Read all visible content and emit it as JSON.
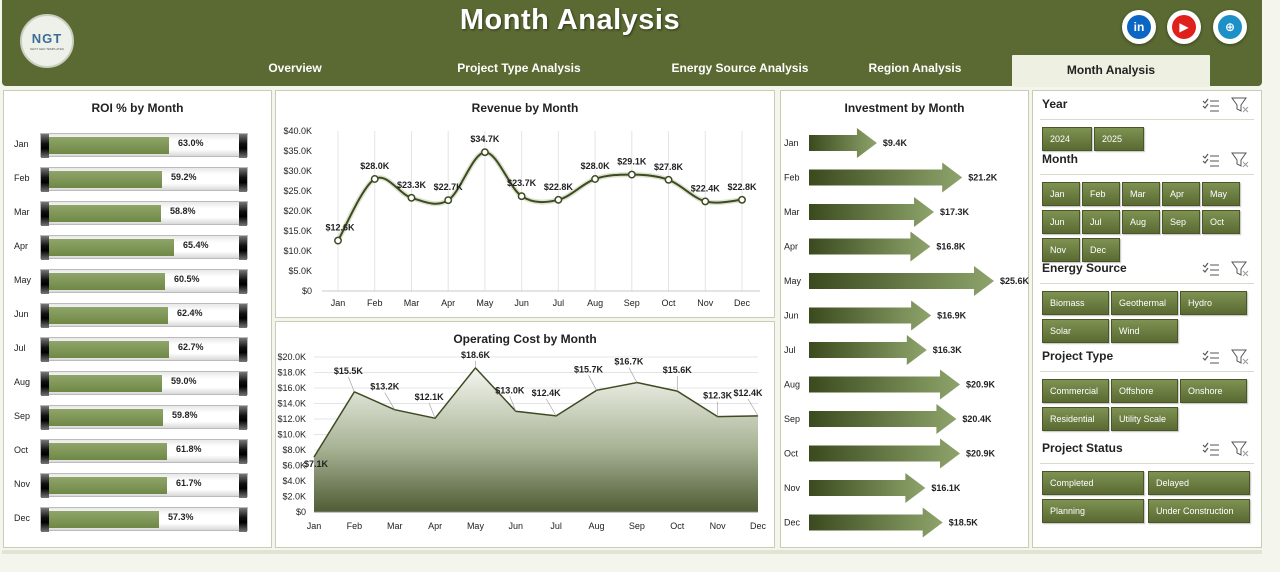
{
  "header": {
    "title": "Month Analysis",
    "logo_text": "NGT",
    "logo_subtext": "NEXT GEN TEMPLATES",
    "social": [
      {
        "name": "linkedin-icon",
        "glyph": "in",
        "color": "#0a66c2"
      },
      {
        "name": "youtube-icon",
        "glyph": "▶",
        "color": "#e0201c"
      },
      {
        "name": "globe-icon",
        "glyph": "⊕",
        "color": "#1e90c8"
      }
    ],
    "tabs": [
      {
        "label": "Overview",
        "active": false
      },
      {
        "label": "Project Type Analysis",
        "active": false
      },
      {
        "label": "Energy Source Analysis",
        "active": false
      },
      {
        "label": "Region Analysis",
        "active": false
      },
      {
        "label": "Month Analysis",
        "active": true
      }
    ]
  },
  "roi": {
    "title": "ROI % by Month",
    "rows": [
      {
        "month": "Jan",
        "value": 63.0,
        "label": "63.0%"
      },
      {
        "month": "Feb",
        "value": 59.2,
        "label": "59.2%"
      },
      {
        "month": "Mar",
        "value": 58.8,
        "label": "58.8%"
      },
      {
        "month": "Apr",
        "value": 65.4,
        "label": "65.4%"
      },
      {
        "month": "May",
        "value": 60.5,
        "label": "60.5%"
      },
      {
        "month": "Jun",
        "value": 62.4,
        "label": "62.4%"
      },
      {
        "month": "Jul",
        "value": 62.7,
        "label": "62.7%"
      },
      {
        "month": "Aug",
        "value": 59.0,
        "label": "59.0%"
      },
      {
        "month": "Sep",
        "value": 59.8,
        "label": "59.8%"
      },
      {
        "month": "Oct",
        "value": 61.8,
        "label": "61.8%"
      },
      {
        "month": "Nov",
        "value": 61.7,
        "label": "61.7%"
      },
      {
        "month": "Dec",
        "value": 57.3,
        "label": "57.3%"
      }
    ]
  },
  "chart_data": [
    {
      "type": "bar",
      "title": "ROI % by Month",
      "categories": [
        "Jan",
        "Feb",
        "Mar",
        "Apr",
        "May",
        "Jun",
        "Jul",
        "Aug",
        "Sep",
        "Oct",
        "Nov",
        "Dec"
      ],
      "values": [
        63.0,
        59.2,
        58.8,
        65.4,
        60.5,
        62.4,
        62.7,
        59.0,
        59.8,
        61.8,
        61.7,
        57.3
      ],
      "unit": "%"
    },
    {
      "type": "line",
      "title": "Revenue by Month",
      "categories": [
        "Jan",
        "Feb",
        "Mar",
        "Apr",
        "May",
        "Jun",
        "Jul",
        "Aug",
        "Sep",
        "Oct",
        "Nov",
        "Dec"
      ],
      "values": [
        12.6,
        28.0,
        23.3,
        22.7,
        34.7,
        23.7,
        22.8,
        28.0,
        29.1,
        27.8,
        22.4,
        22.8
      ],
      "labels": [
        "$12.6K",
        "$28.0K",
        "$23.3K",
        "$22.7K",
        "$34.7K",
        "$23.7K",
        "$22.8K",
        "$28.0K",
        "$29.1K",
        "$27.8K",
        "$22.4K",
        "$22.8K"
      ],
      "yticks": [
        "$0",
        "$5.0K",
        "$10.0K",
        "$15.0K",
        "$20.0K",
        "$25.0K",
        "$30.0K",
        "$35.0K",
        "$40.0K"
      ],
      "ylim": [
        0,
        40
      ]
    },
    {
      "type": "area",
      "title": "Operating Cost by Month",
      "categories": [
        "Jan",
        "Feb",
        "Mar",
        "Apr",
        "May",
        "Jun",
        "Jul",
        "Aug",
        "Sep",
        "Oct",
        "Nov",
        "Dec"
      ],
      "values": [
        7.1,
        15.5,
        13.2,
        12.1,
        18.6,
        13.0,
        12.4,
        15.7,
        16.7,
        15.6,
        12.3,
        12.4
      ],
      "labels": [
        "$7.1K",
        "$15.5K",
        "$13.2K",
        "$12.1K",
        "$18.6K",
        "$13.0K",
        "$12.4K",
        "$15.7K",
        "$16.7K",
        "$15.6K",
        "$12.3K",
        "$12.4K"
      ],
      "yticks": [
        "$0",
        "$2.0K",
        "$4.0K",
        "$6.0K",
        "$8.0K",
        "$10.0K",
        "$12.0K",
        "$14.0K",
        "$16.0K",
        "$18.0K",
        "$20.0K"
      ],
      "ylim": [
        0,
        20
      ]
    },
    {
      "type": "bar",
      "title": "Investment by Month",
      "categories": [
        "Jan",
        "Feb",
        "Mar",
        "Apr",
        "May",
        "Jun",
        "Jul",
        "Aug",
        "Sep",
        "Oct",
        "Nov",
        "Dec"
      ],
      "values": [
        9.4,
        21.2,
        17.3,
        16.8,
        25.6,
        16.9,
        16.3,
        20.9,
        20.4,
        20.9,
        16.1,
        18.5
      ],
      "labels": [
        "$9.4K",
        "$21.2K",
        "$17.3K",
        "$16.8K",
        "$25.6K",
        "$16.9K",
        "$16.3K",
        "$20.9K",
        "$20.4K",
        "$20.9K",
        "$16.1K",
        "$18.5K"
      ]
    }
  ],
  "filters": [
    {
      "title": "Year",
      "columns": 2,
      "items": [
        "2024",
        "2025"
      ]
    },
    {
      "title": "Month",
      "columns": 5,
      "items": [
        "Jan",
        "Feb",
        "Mar",
        "Apr",
        "May",
        "Jun",
        "Jul",
        "Aug",
        "Sep",
        "Oct",
        "Nov",
        "Dec"
      ]
    },
    {
      "title": "Energy Source",
      "columns": 3,
      "items": [
        "Biomass",
        "Geothermal",
        "Hydro",
        "Solar",
        "Wind"
      ]
    },
    {
      "title": "Project Type",
      "columns": 3,
      "items": [
        "Commercial",
        "Offshore",
        "Onshore",
        "Residential",
        "Utility Scale"
      ]
    },
    {
      "title": "Project Status",
      "columns": 2,
      "items": [
        "Completed",
        "Delayed",
        "Planning",
        "Under Construction"
      ]
    }
  ],
  "colors": {
    "header": "#5a6a32",
    "accent": "#6f8845",
    "line": "#3e4a22"
  }
}
